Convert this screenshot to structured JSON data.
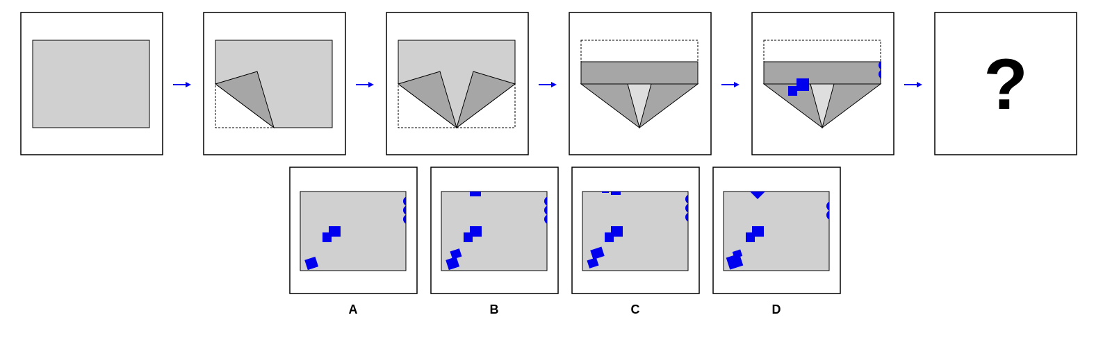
{
  "puzzle": {
    "question_mark": "?",
    "colors": {
      "paper": "#d0d0d0",
      "folded_flap": "#a6a6a6",
      "light_flap": "#dedede",
      "punch_hole": "#0000ee",
      "arrow": "#0000ee",
      "frame": "#000000"
    },
    "steps": [
      {
        "name": "step-1-unfolded-paper"
      },
      {
        "name": "step-2-bottom-left-corner-folded"
      },
      {
        "name": "step-3-both-bottom-corners-folded"
      },
      {
        "name": "step-4-top-strip-folded-down"
      },
      {
        "name": "step-5-holes-punched"
      },
      {
        "name": "step-6-unknown-result"
      }
    ],
    "options": [
      {
        "label": "A"
      },
      {
        "label": "B"
      },
      {
        "label": "C"
      },
      {
        "label": "D"
      }
    ]
  }
}
